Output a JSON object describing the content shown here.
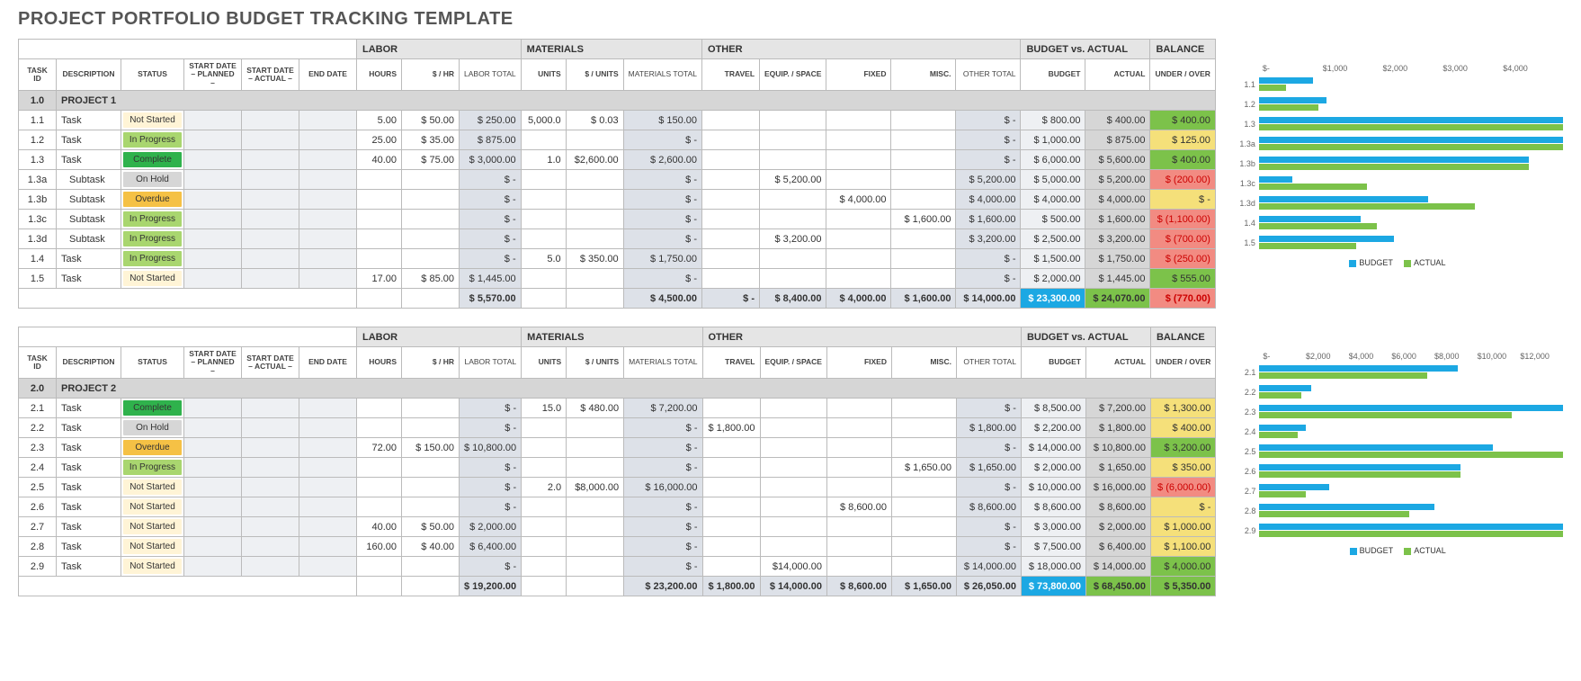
{
  "title": "PROJECT PORTFOLIO BUDGET TRACKING TEMPLATE",
  "section_headers": [
    "LABOR",
    "MATERIALS",
    "OTHER",
    "BUDGET vs. ACTUAL",
    "BALANCE"
  ],
  "columns": [
    "TASK ID",
    "DESCRIPTION",
    "STATUS",
    "START DATE – PLANNED –",
    "START DATE – ACTUAL –",
    "END DATE",
    "HOURS",
    "$ / HR",
    "LABOR TOTAL",
    "UNITS",
    "$ / UNITS",
    "MATERIALS TOTAL",
    "TRAVEL",
    "EQUIP. / SPACE",
    "FIXED",
    "MISC.",
    "OTHER TOTAL",
    "BUDGET",
    "ACTUAL",
    "UNDER / OVER"
  ],
  "status_colors": {
    "Not Started": "#fff4d6",
    "In Progress": "#a9d66f",
    "Complete": "#2fb24c",
    "On Hold": "#d6d6d6",
    "Overdue": "#f5c145"
  },
  "balance_colors": {
    "pos": "#7cc24a",
    "small": "#f5e07a",
    "neg": "#f28b82",
    "zero": "#f5e07a"
  },
  "chart_colors": {
    "budget": "#1ca8e3",
    "actual": "#7cc24a"
  },
  "legend": {
    "budget": "BUDGET",
    "actual": "ACTUAL"
  },
  "projects": [
    {
      "id": "1.0",
      "name": "PROJECT 1",
      "chart": {
        "max": 4500,
        "ticks": [
          "$-",
          "$1,000",
          "$2,000",
          "$3,000",
          "$4,000"
        ]
      },
      "rows": [
        {
          "id": "1.1",
          "desc": "Task",
          "status": "Not Started",
          "hours": "5.00",
          "rate": "$   50.00",
          "labor": "$     250.00",
          "units": "5,000.0",
          "uprice": "$     0.03",
          "mat": "$     150.00",
          "other": "$          -",
          "budget": "$      800.00",
          "actual": "$      400.00",
          "bal": "$      400.00",
          "balCls": "pos",
          "bBudget": 800,
          "bActual": 400
        },
        {
          "id": "1.2",
          "desc": "Task",
          "status": "In Progress",
          "hours": "25.00",
          "rate": "$   35.00",
          "labor": "$     875.00",
          "mat": "$          -",
          "other": "$          -",
          "budget": "$   1,000.00",
          "actual": "$      875.00",
          "bal": "$      125.00",
          "balCls": "small",
          "bBudget": 1000,
          "bActual": 875
        },
        {
          "id": "1.3",
          "desc": "Task",
          "status": "Complete",
          "hours": "40.00",
          "rate": "$   75.00",
          "labor": "$  3,000.00",
          "units": "1.0",
          "uprice": "$2,600.00",
          "mat": "$  2,600.00",
          "other": "$          -",
          "budget": "$   6,000.00",
          "actual": "$   5,600.00",
          "bal": "$      400.00",
          "balCls": "pos",
          "bBudget": 6000,
          "bActual": 5600
        },
        {
          "id": "1.3a",
          "desc": "Subtask",
          "indent": true,
          "status": "On Hold",
          "labor": "$          -",
          "mat": "$          -",
          "equip": "$  5,200.00",
          "other": "$  5,200.00",
          "budget": "$   5,000.00",
          "actual": "$   5,200.00",
          "bal": "$     (200.00)",
          "balCls": "neg",
          "neg": true,
          "bBudget": 5000,
          "bActual": 5200
        },
        {
          "id": "1.3b",
          "desc": "Subtask",
          "indent": true,
          "status": "Overdue",
          "labor": "$          -",
          "mat": "$          -",
          "fixed": "$  4,000.00",
          "other": "$  4,000.00",
          "budget": "$   4,000.00",
          "actual": "$   4,000.00",
          "bal": "$           -",
          "balCls": "zero",
          "bBudget": 4000,
          "bActual": 4000
        },
        {
          "id": "1.3c",
          "desc": "Subtask",
          "indent": true,
          "status": "In Progress",
          "labor": "$          -",
          "mat": "$          -",
          "misc": "$  1,600.00",
          "other": "$  1,600.00",
          "budget": "$      500.00",
          "actual": "$   1,600.00",
          "bal": "$  (1,100.00)",
          "balCls": "neg",
          "neg": true,
          "bBudget": 500,
          "bActual": 1600
        },
        {
          "id": "1.3d",
          "desc": "Subtask",
          "indent": true,
          "status": "In Progress",
          "labor": "$          -",
          "mat": "$          -",
          "equip": "$  3,200.00",
          "other": "$  3,200.00",
          "budget": "$   2,500.00",
          "actual": "$   3,200.00",
          "bal": "$     (700.00)",
          "balCls": "neg",
          "neg": true,
          "bBudget": 2500,
          "bActual": 3200
        },
        {
          "id": "1.4",
          "desc": "Task",
          "status": "In Progress",
          "labor": "$          -",
          "units": "5.0",
          "uprice": "$  350.00",
          "mat": "$  1,750.00",
          "other": "$          -",
          "budget": "$   1,500.00",
          "actual": "$   1,750.00",
          "bal": "$     (250.00)",
          "balCls": "neg",
          "neg": true,
          "bBudget": 1500,
          "bActual": 1750
        },
        {
          "id": "1.5",
          "desc": "Task",
          "status": "Not Started",
          "hours": "17.00",
          "rate": "$   85.00",
          "labor": "$  1,445.00",
          "mat": "$          -",
          "other": "$          -",
          "budget": "$   2,000.00",
          "actual": "$   1,445.00",
          "bal": "$      555.00",
          "balCls": "pos",
          "bBudget": 2000,
          "bActual": 1445
        }
      ],
      "totals": {
        "labor": "$  5,570.00",
        "mat": "$  4,500.00",
        "travel": "$          -",
        "equip": "$  8,400.00",
        "fixed": "$  4,000.00",
        "misc": "$  1,600.00",
        "other": "$ 14,000.00",
        "budget": "$  23,300.00",
        "actual": "$  24,070.00",
        "bal": "$     (770.00)",
        "balCls": "neg",
        "neg": true
      }
    },
    {
      "id": "2.0",
      "name": "PROJECT 2",
      "chart": {
        "max": 13000,
        "ticks": [
          "$-",
          "$2,000",
          "$4,000",
          "$6,000",
          "$8,000",
          "$10,000",
          "$12,000"
        ]
      },
      "rows": [
        {
          "id": "2.1",
          "desc": "Task",
          "status": "Complete",
          "labor": "$          -",
          "units": "15.0",
          "uprice": "$  480.00",
          "mat": "$  7,200.00",
          "other": "$          -",
          "budget": "$   8,500.00",
          "actual": "$   7,200.00",
          "bal": "$   1,300.00",
          "balCls": "small",
          "bBudget": 8500,
          "bActual": 7200
        },
        {
          "id": "2.2",
          "desc": "Task",
          "status": "On Hold",
          "labor": "$          -",
          "mat": "$          -",
          "travel": "$  1,800.00",
          "other": "$  1,800.00",
          "budget": "$   2,200.00",
          "actual": "$   1,800.00",
          "bal": "$      400.00",
          "balCls": "small",
          "bBudget": 2200,
          "bActual": 1800
        },
        {
          "id": "2.3",
          "desc": "Task",
          "status": "Overdue",
          "hours": "72.00",
          "rate": "$  150.00",
          "labor": "$ 10,800.00",
          "mat": "$          -",
          "other": "$          -",
          "budget": "$  14,000.00",
          "actual": "$  10,800.00",
          "bal": "$   3,200.00",
          "balCls": "pos",
          "bBudget": 14000,
          "bActual": 10800
        },
        {
          "id": "2.4",
          "desc": "Task",
          "status": "In Progress",
          "labor": "$          -",
          "mat": "$          -",
          "misc": "$  1,650.00",
          "other": "$  1,650.00",
          "budget": "$   2,000.00",
          "actual": "$   1,650.00",
          "bal": "$      350.00",
          "balCls": "small",
          "bBudget": 2000,
          "bActual": 1650
        },
        {
          "id": "2.5",
          "desc": "Task",
          "status": "Not Started",
          "labor": "$          -",
          "units": "2.0",
          "uprice": "$8,000.00",
          "mat": "$ 16,000.00",
          "other": "$          -",
          "budget": "$  10,000.00",
          "actual": "$  16,000.00",
          "bal": "$  (6,000.00)",
          "balCls": "neg",
          "neg": true,
          "bBudget": 10000,
          "bActual": 16000
        },
        {
          "id": "2.6",
          "desc": "Task",
          "status": "Not Started",
          "labor": "$          -",
          "mat": "$          -",
          "fixed": "$  8,600.00",
          "other": "$  8,600.00",
          "budget": "$   8,600.00",
          "actual": "$   8,600.00",
          "bal": "$           -",
          "balCls": "zero",
          "bBudget": 8600,
          "bActual": 8600
        },
        {
          "id": "2.7",
          "desc": "Task",
          "status": "Not Started",
          "hours": "40.00",
          "rate": "$   50.00",
          "labor": "$  2,000.00",
          "mat": "$          -",
          "other": "$          -",
          "budget": "$   3,000.00",
          "actual": "$   2,000.00",
          "bal": "$   1,000.00",
          "balCls": "small",
          "bBudget": 3000,
          "bActual": 2000
        },
        {
          "id": "2.8",
          "desc": "Task",
          "status": "Not Started",
          "hours": "160.00",
          "rate": "$   40.00",
          "labor": "$  6,400.00",
          "mat": "$          -",
          "other": "$          -",
          "budget": "$   7,500.00",
          "actual": "$   6,400.00",
          "bal": "$   1,100.00",
          "balCls": "small",
          "bBudget": 7500,
          "bActual": 6400
        },
        {
          "id": "2.9",
          "desc": "Task",
          "status": "Not Started",
          "labor": "$          -",
          "mat": "$          -",
          "equip": "$14,000.00",
          "other": "$ 14,000.00",
          "budget": "$  18,000.00",
          "actual": "$  14,000.00",
          "bal": "$   4,000.00",
          "balCls": "pos",
          "bBudget": 18000,
          "bActual": 14000
        }
      ],
      "totals": {
        "labor": "$ 19,200.00",
        "mat": "$ 23,200.00",
        "travel": "$  1,800.00",
        "equip": "$ 14,000.00",
        "fixed": "$  8,600.00",
        "misc": "$  1,650.00",
        "other": "$ 26,050.00",
        "budget": "$  73,800.00",
        "actual": "$  68,450.00",
        "bal": "$   5,350.00",
        "balCls": "pos"
      }
    }
  ]
}
